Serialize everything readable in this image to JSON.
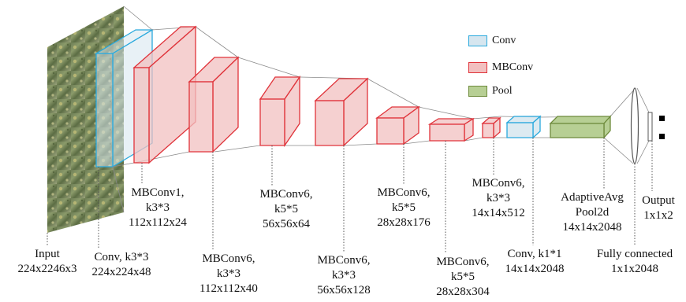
{
  "legend": {
    "conv": {
      "label": "Conv",
      "fill": "#d6e6ef",
      "stroke": "#29a9dd"
    },
    "mbconv": {
      "label": "MBConv",
      "fill": "#f2c0c0",
      "stroke": "#e0333a"
    },
    "pool": {
      "label": "Pool",
      "fill": "#b7cf94",
      "stroke": "#6e8b3c"
    }
  },
  "labels": {
    "input": [
      "Input",
      "224x2246x3"
    ],
    "conv1": [
      "Conv, k3*3",
      "224x224x48"
    ],
    "mb1": [
      "MBConv1,",
      "k3*3",
      "112x112x24"
    ],
    "mb2": [
      "MBConv6,",
      "k3*3",
      "112x112x40"
    ],
    "mb3": [
      "MBConv6,",
      "k5*5",
      "56x56x64"
    ],
    "mb4": [
      "MBConv6,",
      "k3*3",
      "56x56x128"
    ],
    "mb5": [
      "MBConv6,",
      "k5*5",
      "28x28x176"
    ],
    "mb6": [
      "MBConv6,",
      "k5*5",
      "28x28x304"
    ],
    "mb7": [
      "MBConv6,",
      "k3*3",
      "14x14x512"
    ],
    "conv2": [
      "Conv, k1*1",
      "14x14x2048"
    ],
    "pool": [
      "AdaptiveAvg",
      "Pool2d",
      "14x14x2048"
    ],
    "fc": [
      "Fully connected",
      "1x1x2048"
    ],
    "output": [
      "Output",
      "1x1x2"
    ]
  }
}
